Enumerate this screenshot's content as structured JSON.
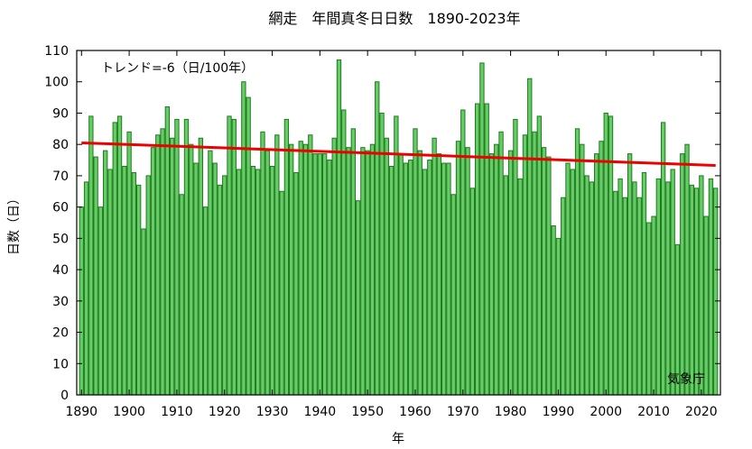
{
  "chart_data": {
    "type": "bar",
    "title": "網走　年間真冬日日数　1890-2023年",
    "xlabel": "年",
    "ylabel": "日数（日）",
    "annotation": "トレンド=-6（日/100年）",
    "credit": "気象庁",
    "ylim": [
      0,
      110
    ],
    "xlim": [
      1889,
      2024
    ],
    "x_ticks": [
      1890,
      1900,
      1910,
      1920,
      1930,
      1940,
      1950,
      1960,
      1970,
      1980,
      1990,
      2000,
      2010,
      2020
    ],
    "y_ticks": [
      0,
      10,
      20,
      30,
      40,
      50,
      60,
      70,
      80,
      90,
      100,
      110
    ],
    "x_start": 1890,
    "values": [
      60,
      68,
      89,
      76,
      60,
      78,
      72,
      87,
      89,
      73,
      84,
      71,
      67,
      53,
      70,
      79,
      83,
      85,
      92,
      82,
      88,
      64,
      88,
      80,
      74,
      82,
      60,
      78,
      74,
      67,
      70,
      89,
      88,
      72,
      100,
      95,
      73,
      72,
      84,
      78,
      73,
      83,
      65,
      88,
      80,
      71,
      81,
      80,
      83,
      77,
      77,
      77,
      75,
      82,
      107,
      91,
      79,
      85,
      62,
      79,
      78,
      80,
      100,
      90,
      82,
      73,
      89,
      77,
      74,
      75,
      85,
      78,
      72,
      75,
      82,
      77,
      74,
      74,
      64,
      81,
      91,
      79,
      66,
      93,
      106,
      93,
      77,
      80,
      84,
      70,
      78,
      88,
      69,
      83,
      101,
      84,
      89,
      79,
      76,
      54,
      50,
      63,
      74,
      72,
      85,
      80,
      70,
      68,
      77,
      81,
      90,
      89,
      65,
      69,
      63,
      77,
      68,
      63,
      71,
      55,
      57,
      69,
      87,
      68,
      72,
      48,
      77,
      80,
      67,
      66,
      70,
      57,
      69,
      66
    ],
    "trend": {
      "start_year": 1890,
      "start_value": 80.5,
      "end_year": 2023,
      "end_value": 73.3
    },
    "colors": {
      "bar_fill": "#66cc66",
      "bar_stroke": "#1f7a1f",
      "trend": "#ee0000"
    },
    "grid": false
  }
}
